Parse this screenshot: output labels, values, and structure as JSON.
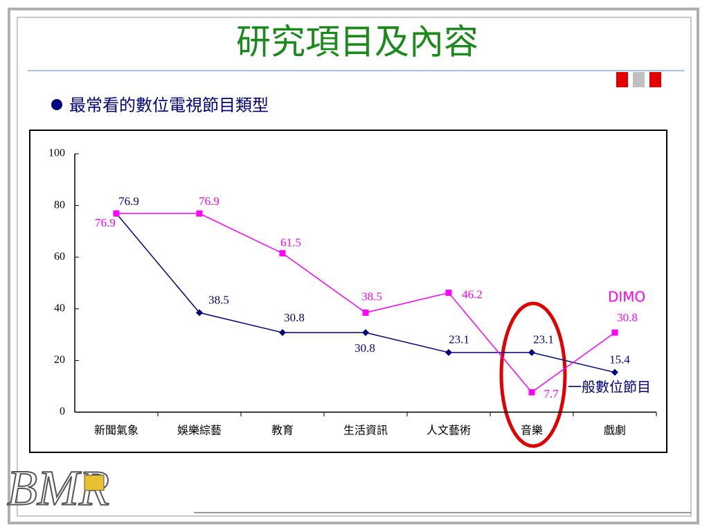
{
  "title": "研究項目及內容",
  "bullet": "最常看的數位電視節目類型",
  "logo": "BMR",
  "chart_data": {
    "type": "line",
    "categories": [
      "新聞氣象",
      "娛樂綜藝",
      "教育",
      "生活資訊",
      "人文藝術",
      "音樂",
      "戲劇"
    ],
    "series": [
      {
        "name": "一般數位節目",
        "color": "#000080",
        "values": [
          76.9,
          38.5,
          30.8,
          30.8,
          23.1,
          23.1,
          15.4
        ]
      },
      {
        "name": "DIMO",
        "color": "#ff00ff",
        "values": [
          76.9,
          76.9,
          61.5,
          38.5,
          46.2,
          7.7,
          30.8
        ]
      }
    ],
    "ylim": [
      0,
      100
    ],
    "yticks": [
      0,
      20,
      40,
      60,
      80,
      100
    ],
    "grid": false
  }
}
